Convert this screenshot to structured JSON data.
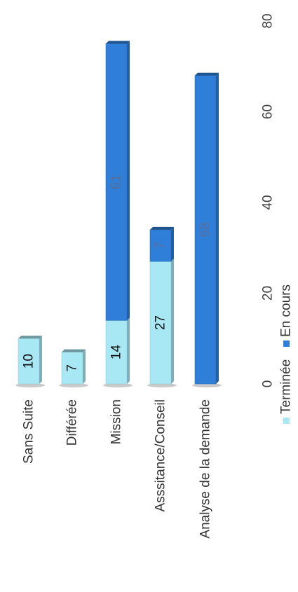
{
  "chart_data": {
    "type": "bar",
    "orientation": "horizontal-stacked",
    "categories": [
      "Sans Suite",
      "Différée",
      "Mission",
      "Asssitance/Conseil",
      "Analyse de la demande"
    ],
    "series": [
      {
        "name": "Terminée",
        "values": [
          10,
          7,
          14,
          27,
          0
        ],
        "color": "#a8e8f4"
      },
      {
        "name": "En cours",
        "values": [
          0,
          0,
          61,
          7,
          68
        ],
        "color": "#2f7fd8"
      }
    ],
    "data_labels": [
      [
        "10",
        "7",
        "14",
        "27",
        null
      ],
      [
        null,
        null,
        "61",
        "7",
        "68"
      ]
    ],
    "value_axis": {
      "min": 0,
      "max": 80,
      "ticks": [
        "0",
        "20",
        "40",
        "60",
        "80"
      ]
    },
    "legend": {
      "position": "bottom",
      "entries": [
        "Terminée",
        "En cours"
      ]
    },
    "grid": false,
    "style_3d": true
  }
}
